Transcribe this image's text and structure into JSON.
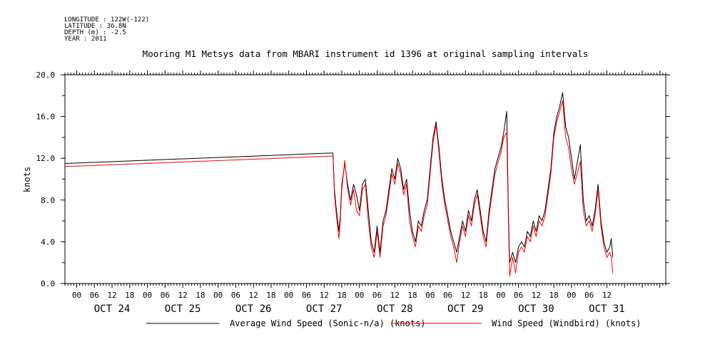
{
  "header": {
    "meta_lines": [
      "LONGITUDE : 122W(-122)",
      "LATITUDE : 36.8N",
      "DEPTH (m) : -2.5",
      "YEAR : 2011"
    ]
  },
  "colors": {
    "avg_series": "#000000",
    "windbird_series": "#ff0000",
    "axis": "#000000",
    "background": "#ffffff"
  },
  "chart_data": {
    "type": "line",
    "title": "Mooring M1 Metsys data from MBARI instrument id 1396 at original sampling intervals",
    "xlabel": "",
    "ylabel": "knots",
    "ylim": [
      0,
      20
    ],
    "yticks": [
      "0.0",
      "4.0",
      "8.0",
      "12.0",
      "16.0",
      "20.0"
    ],
    "x_range_hours": [
      -4,
      200
    ],
    "x_hour_ticks": [
      "00",
      "06",
      "12",
      "18",
      "00",
      "06",
      "12",
      "18",
      "00",
      "06",
      "12",
      "18",
      "00",
      "06",
      "12",
      "18",
      "00",
      "06",
      "12",
      "18",
      "00",
      "06",
      "12",
      "18",
      "00",
      "06",
      "12",
      "18",
      "00",
      "06",
      "12"
    ],
    "x_day_labels": [
      "OCT 24",
      "OCT 25",
      "OCT 26",
      "OCT 27",
      "OCT 28",
      "OCT 29",
      "OCT 30",
      "OCT 31"
    ],
    "grid": false,
    "legend_position": "bottom",
    "x_units": "hours since 2011-10-24 00:00",
    "series": [
      {
        "name": "Average Wind Speed (Sonic-n/a) (knots)",
        "color": "#000000",
        "points": [
          [
            -4,
            11.5
          ],
          [
            86,
            12.5
          ],
          [
            87,
            12.5
          ],
          [
            87.5,
            9.0
          ],
          [
            88,
            7.5
          ],
          [
            89,
            5.0
          ],
          [
            89.5,
            6.5
          ],
          [
            90,
            9.5
          ],
          [
            91,
            11.5
          ],
          [
            92,
            9.5
          ],
          [
            93,
            8.0
          ],
          [
            94,
            9.5
          ],
          [
            95,
            8.5
          ],
          [
            96,
            7.0
          ],
          [
            97,
            9.5
          ],
          [
            98,
            10.0
          ],
          [
            99,
            7.0
          ],
          [
            100,
            4.0
          ],
          [
            101,
            3.0
          ],
          [
            102,
            5.5
          ],
          [
            103,
            3.0
          ],
          [
            104,
            6.0
          ],
          [
            105,
            7.0
          ],
          [
            106,
            9.0
          ],
          [
            107,
            11.0
          ],
          [
            108,
            10.0
          ],
          [
            109,
            12.0
          ],
          [
            110,
            11.0
          ],
          [
            111,
            9.0
          ],
          [
            112,
            10.0
          ],
          [
            113,
            7.0
          ],
          [
            114,
            5.0
          ],
          [
            115,
            4.0
          ],
          [
            116,
            6.0
          ],
          [
            117,
            5.5
          ],
          [
            118,
            7.0
          ],
          [
            119,
            8.0
          ],
          [
            120,
            11.0
          ],
          [
            121,
            14.0
          ],
          [
            122,
            15.5
          ],
          [
            123,
            13.0
          ],
          [
            124,
            10.0
          ],
          [
            125,
            8.0
          ],
          [
            126,
            6.5
          ],
          [
            127,
            5.0
          ],
          [
            128,
            4.0
          ],
          [
            129,
            3.0
          ],
          [
            130,
            4.5
          ],
          [
            131,
            6.0
          ],
          [
            132,
            5.0
          ],
          [
            133,
            7.0
          ],
          [
            134,
            6.0
          ],
          [
            135,
            8.0
          ],
          [
            136,
            9.0
          ],
          [
            137,
            7.0
          ],
          [
            138,
            5.0
          ],
          [
            139,
            4.0
          ],
          [
            140,
            7.0
          ],
          [
            141,
            9.0
          ],
          [
            142,
            11.0
          ],
          [
            143,
            12.0
          ],
          [
            144,
            13.0
          ],
          [
            145,
            14.5
          ],
          [
            146,
            16.5
          ],
          [
            146.5,
            8.0
          ],
          [
            147,
            2.0
          ],
          [
            148,
            3.0
          ],
          [
            149,
            2.0
          ],
          [
            150,
            3.5
          ],
          [
            151,
            4.0
          ],
          [
            152,
            3.5
          ],
          [
            153,
            5.0
          ],
          [
            154,
            4.5
          ],
          [
            155,
            6.0
          ],
          [
            156,
            5.0
          ],
          [
            157,
            6.5
          ],
          [
            158,
            6.0
          ],
          [
            159,
            7.0
          ],
          [
            160,
            9.0
          ],
          [
            161,
            11.0
          ],
          [
            162,
            14.5
          ],
          [
            163,
            16.0
          ],
          [
            164,
            17.0
          ],
          [
            165,
            18.3
          ],
          [
            166,
            15.0
          ],
          [
            167,
            14.0
          ],
          [
            168,
            12.0
          ],
          [
            169,
            10.0
          ],
          [
            171,
            13.3
          ],
          [
            172,
            8.0
          ],
          [
            173,
            6.0
          ],
          [
            174,
            6.5
          ],
          [
            175,
            5.5
          ],
          [
            176,
            7.0
          ],
          [
            177,
            9.5
          ],
          [
            178,
            6.0
          ],
          [
            179,
            4.0
          ],
          [
            180,
            3.0
          ],
          [
            181,
            3.5
          ],
          [
            181.5,
            4.3
          ],
          [
            182,
            2.5
          ]
        ]
      },
      {
        "name": "Wind Speed (Windbird) (knots)",
        "color": "#ff0000",
        "points": [
          [
            -4,
            11.2
          ],
          [
            86,
            12.2
          ],
          [
            87,
            12.2
          ],
          [
            87.5,
            8.5
          ],
          [
            88,
            7.0
          ],
          [
            89,
            4.3
          ],
          [
            89.5,
            6.0
          ],
          [
            90,
            9.0
          ],
          [
            91,
            11.8
          ],
          [
            92,
            9.0
          ],
          [
            93,
            7.5
          ],
          [
            94,
            9.0
          ],
          [
            95,
            7.0
          ],
          [
            96,
            6.5
          ],
          [
            97,
            9.0
          ],
          [
            98,
            9.5
          ],
          [
            99,
            6.0
          ],
          [
            100,
            3.5
          ],
          [
            101,
            2.5
          ],
          [
            102,
            5.0
          ],
          [
            103,
            2.5
          ],
          [
            104,
            5.5
          ],
          [
            105,
            6.5
          ],
          [
            106,
            8.5
          ],
          [
            107,
            10.5
          ],
          [
            108,
            9.5
          ],
          [
            109,
            11.5
          ],
          [
            110,
            10.5
          ],
          [
            111,
            8.5
          ],
          [
            112,
            9.5
          ],
          [
            113,
            6.0
          ],
          [
            114,
            4.5
          ],
          [
            115,
            3.5
          ],
          [
            116,
            5.5
          ],
          [
            117,
            5.0
          ],
          [
            118,
            6.5
          ],
          [
            119,
            7.5
          ],
          [
            120,
            10.5
          ],
          [
            121,
            13.5
          ],
          [
            122,
            15.2
          ],
          [
            123,
            12.5
          ],
          [
            124,
            9.5
          ],
          [
            125,
            7.5
          ],
          [
            126,
            6.0
          ],
          [
            127,
            4.5
          ],
          [
            128,
            3.5
          ],
          [
            129,
            2.0
          ],
          [
            130,
            4.0
          ],
          [
            131,
            5.5
          ],
          [
            132,
            4.5
          ],
          [
            133,
            6.5
          ],
          [
            134,
            5.5
          ],
          [
            135,
            7.5
          ],
          [
            136,
            8.5
          ],
          [
            137,
            6.5
          ],
          [
            138,
            4.5
          ],
          [
            139,
            3.5
          ],
          [
            140,
            6.5
          ],
          [
            141,
            8.5
          ],
          [
            142,
            10.5
          ],
          [
            143,
            11.5
          ],
          [
            144,
            12.5
          ],
          [
            145,
            14.0
          ],
          [
            146,
            14.5
          ],
          [
            146.5,
            7.0
          ],
          [
            147,
            0.7
          ],
          [
            148,
            2.5
          ],
          [
            149,
            1.0
          ],
          [
            150,
            3.0
          ],
          [
            151,
            3.5
          ],
          [
            152,
            3.0
          ],
          [
            153,
            4.5
          ],
          [
            154,
            4.0
          ],
          [
            155,
            5.5
          ],
          [
            156,
            4.5
          ],
          [
            157,
            6.0
          ],
          [
            158,
            5.5
          ],
          [
            159,
            6.5
          ],
          [
            160,
            8.5
          ],
          [
            161,
            10.5
          ],
          [
            162,
            14.0
          ],
          [
            163,
            15.5
          ],
          [
            164,
            16.5
          ],
          [
            165,
            17.5
          ],
          [
            166,
            14.0
          ],
          [
            167,
            13.0
          ],
          [
            168,
            11.0
          ],
          [
            169,
            9.5
          ],
          [
            171,
            11.7
          ],
          [
            172,
            7.0
          ],
          [
            173,
            5.5
          ],
          [
            174,
            6.0
          ],
          [
            175,
            5.0
          ],
          [
            176,
            6.5
          ],
          [
            177,
            9.0
          ],
          [
            178,
            5.5
          ],
          [
            179,
            3.5
          ],
          [
            180,
            2.5
          ],
          [
            181,
            3.0
          ],
          [
            181.5,
            2.5
          ],
          [
            182,
            1.0
          ]
        ]
      }
    ]
  }
}
